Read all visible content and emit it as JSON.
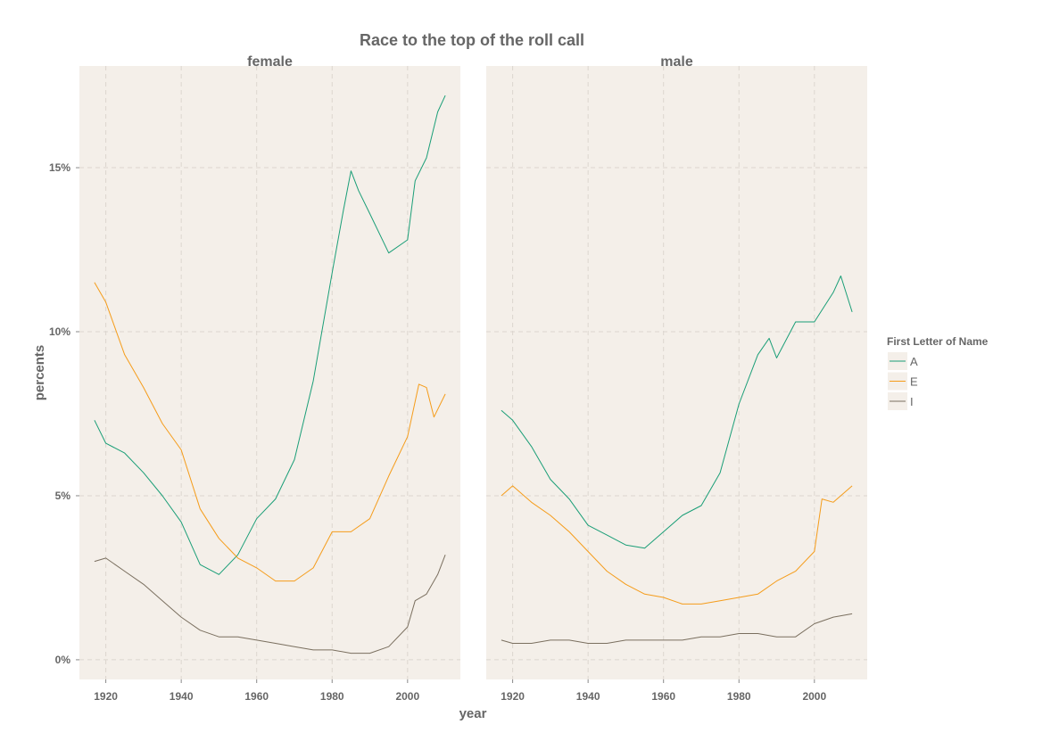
{
  "chart_data": {
    "type": "line",
    "title": "Race to the top of the roll call",
    "xlabel": "year",
    "ylabel": "percents",
    "xlim": [
      1913,
      2014
    ],
    "ylim": [
      -0.6,
      18.1
    ],
    "x_ticks": [
      1920,
      1940,
      1960,
      1980,
      2000
    ],
    "x_tick_labels": [
      "1920",
      "1940",
      "1960",
      "1980",
      "2000"
    ],
    "y_ticks": [
      0,
      5,
      10,
      15
    ],
    "y_tick_labels": [
      "0%",
      "5%",
      "10%",
      "15%"
    ],
    "grid": true,
    "legend_position": "right",
    "legend": {
      "title": "First Letter of Name",
      "entries": [
        {
          "label": "A",
          "color": "#1a9e77"
        },
        {
          "label": "E",
          "color": "#f59c1a"
        },
        {
          "label": "I",
          "color": "#7a6f5f"
        }
      ]
    },
    "colors": {
      "panel_bg": "#f4efe9",
      "grid": "#dcd6cf",
      "text": "#666666"
    },
    "panels": [
      {
        "name": "female",
        "series": [
          {
            "name": "A",
            "color": "#1a9e77",
            "x": [
              1917,
              1920,
              1925,
              1930,
              1935,
              1940,
              1945,
              1950,
              1955,
              1960,
              1965,
              1970,
              1975,
              1980,
              1983,
              1985,
              1987,
              1990,
              1995,
              2000,
              2002,
              2005,
              2008,
              2010
            ],
            "values": [
              7.3,
              6.6,
              6.3,
              5.7,
              5.0,
              4.2,
              2.9,
              2.6,
              3.2,
              4.3,
              4.9,
              6.1,
              8.5,
              11.8,
              13.7,
              14.9,
              14.3,
              13.6,
              12.4,
              12.8,
              14.6,
              15.3,
              16.7,
              17.2
            ]
          },
          {
            "name": "E",
            "color": "#f59c1a",
            "x": [
              1917,
              1920,
              1925,
              1930,
              1935,
              1940,
              1945,
              1950,
              1955,
              1960,
              1965,
              1970,
              1975,
              1980,
              1985,
              1990,
              1995,
              2000,
              2003,
              2005,
              2007,
              2010
            ],
            "values": [
              11.5,
              10.9,
              9.3,
              8.3,
              7.2,
              6.4,
              4.6,
              3.7,
              3.1,
              2.8,
              2.4,
              2.4,
              2.8,
              3.9,
              3.9,
              4.3,
              5.6,
              6.8,
              8.4,
              8.3,
              7.4,
              8.1
            ]
          },
          {
            "name": "I",
            "color": "#7a6f5f",
            "x": [
              1917,
              1920,
              1925,
              1930,
              1935,
              1940,
              1945,
              1950,
              1955,
              1960,
              1965,
              1970,
              1975,
              1980,
              1985,
              1990,
              1995,
              2000,
              2002,
              2005,
              2008,
              2010
            ],
            "values": [
              3.0,
              3.1,
              2.7,
              2.3,
              1.8,
              1.3,
              0.9,
              0.7,
              0.7,
              0.6,
              0.5,
              0.4,
              0.3,
              0.3,
              0.2,
              0.2,
              0.4,
              1.0,
              1.8,
              2.0,
              2.6,
              3.2
            ]
          }
        ]
      },
      {
        "name": "male",
        "series": [
          {
            "name": "A",
            "color": "#1a9e77",
            "x": [
              1917,
              1920,
              1925,
              1930,
              1935,
              1940,
              1945,
              1950,
              1955,
              1960,
              1965,
              1970,
              1975,
              1980,
              1985,
              1988,
              1990,
              1995,
              2000,
              2005,
              2007,
              2010
            ],
            "values": [
              7.6,
              7.3,
              6.5,
              5.5,
              4.9,
              4.1,
              3.8,
              3.5,
              3.4,
              3.9,
              4.4,
              4.7,
              5.7,
              7.8,
              9.3,
              9.8,
              9.2,
              10.3,
              10.3,
              11.2,
              11.7,
              10.6
            ]
          },
          {
            "name": "E",
            "color": "#f59c1a",
            "x": [
              1917,
              1920,
              1925,
              1930,
              1935,
              1940,
              1945,
              1950,
              1955,
              1960,
              1965,
              1970,
              1975,
              1980,
              1985,
              1990,
              1995,
              2000,
              2002,
              2005,
              2010
            ],
            "values": [
              5.0,
              5.3,
              4.8,
              4.4,
              3.9,
              3.3,
              2.7,
              2.3,
              2.0,
              1.9,
              1.7,
              1.7,
              1.8,
              1.9,
              2.0,
              2.4,
              2.7,
              3.3,
              4.9,
              4.8,
              5.3
            ]
          },
          {
            "name": "I",
            "color": "#7a6f5f",
            "x": [
              1917,
              1920,
              1925,
              1930,
              1935,
              1940,
              1945,
              1950,
              1955,
              1960,
              1965,
              1970,
              1975,
              1980,
              1985,
              1990,
              1995,
              2000,
              2005,
              2010
            ],
            "values": [
              0.6,
              0.5,
              0.5,
              0.6,
              0.6,
              0.5,
              0.5,
              0.6,
              0.6,
              0.6,
              0.6,
              0.7,
              0.7,
              0.8,
              0.8,
              0.7,
              0.7,
              1.1,
              1.3,
              1.4
            ]
          }
        ]
      }
    ]
  }
}
